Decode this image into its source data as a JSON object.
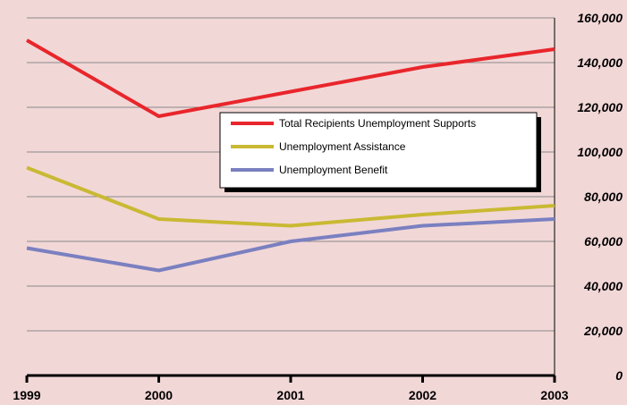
{
  "chart_data": {
    "type": "line",
    "x": [
      "1999",
      "2000",
      "2001",
      "2002",
      "2003"
    ],
    "ylim": [
      0,
      160000
    ],
    "yticks": [
      "0",
      "20,000",
      "40,000",
      "60,000",
      "80,000",
      "100,000",
      "120,000",
      "140,000",
      "160,000"
    ],
    "grid": true,
    "legend_position": "center-right",
    "series": [
      {
        "name": "Total Recipients Unemployment Supports",
        "color": "#e8262b",
        "values": [
          150000,
          116000,
          127000,
          138000,
          146000
        ]
      },
      {
        "name": "Unemployment Assistance",
        "color": "#c9b933",
        "values": [
          93000,
          70000,
          67000,
          72000,
          76000
        ]
      },
      {
        "name": "Unemployment Benefit",
        "color": "#7a80c0",
        "values": [
          57000,
          47000,
          60000,
          67000,
          70000
        ]
      }
    ]
  }
}
